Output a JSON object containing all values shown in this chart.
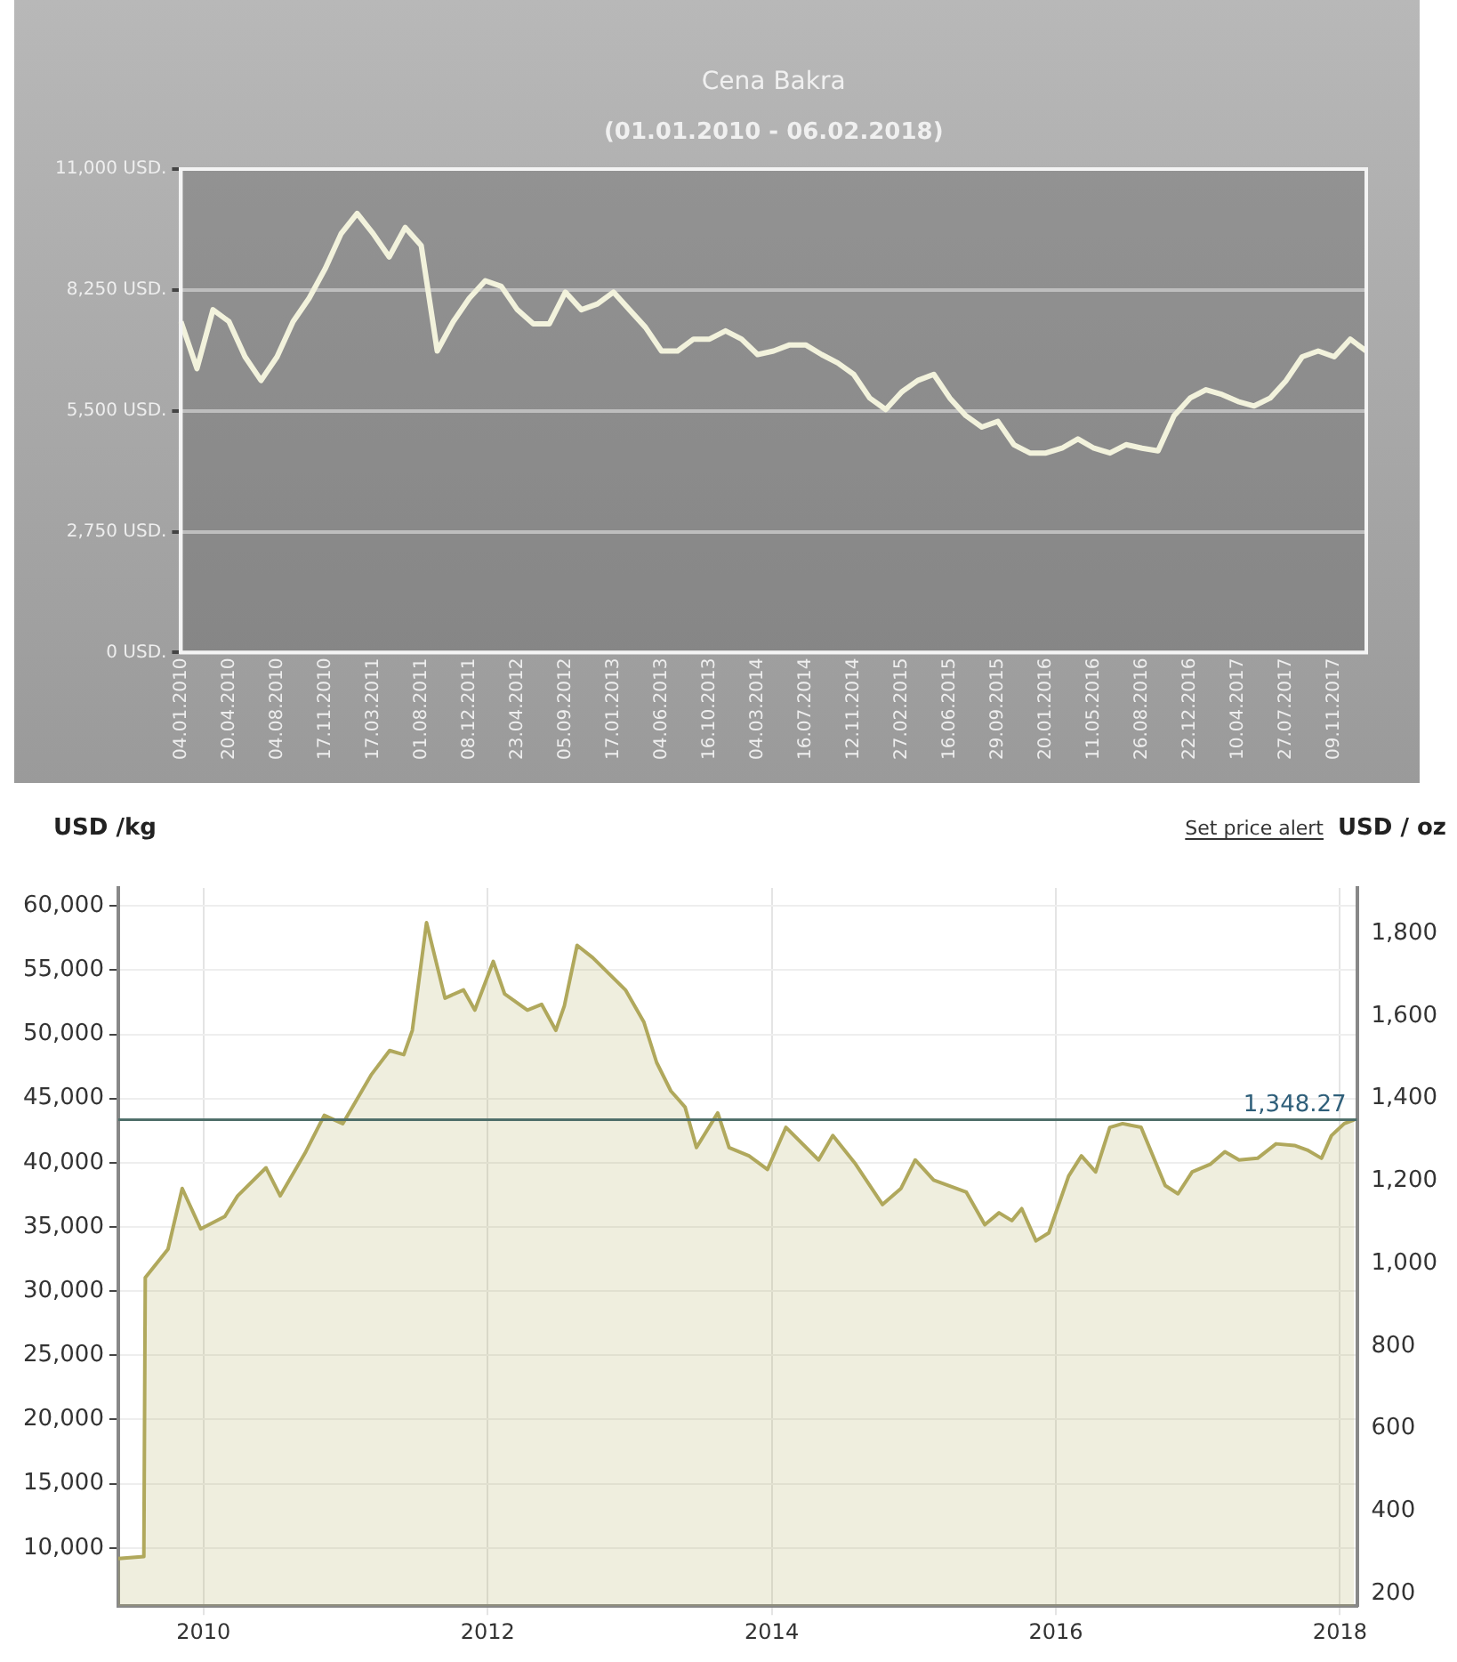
{
  "chart_data": [
    {
      "type": "line",
      "title": "Cena Bakra",
      "subtitle": "(01.01.2010 - 06.02.2018)",
      "categories": [
        "04.01.2010",
        null,
        null,
        "20.04.2010",
        null,
        null,
        "04.08.2010",
        null,
        null,
        "17.11.2010",
        null,
        null,
        "17.03.2011",
        null,
        null,
        "01.08.2011",
        null,
        null,
        "08.12.2011",
        null,
        null,
        "23.04.2012",
        null,
        null,
        "05.09.2012",
        null,
        null,
        "17.01.2013",
        null,
        null,
        "04.06.2013",
        null,
        null,
        "16.10.2013",
        null,
        null,
        "04.03.2014",
        null,
        null,
        "16.07.2014",
        null,
        null,
        "12.11.2014",
        null,
        null,
        "27.02.2015",
        null,
        null,
        "16.06.2015",
        null,
        null,
        "29.09.2015",
        null,
        null,
        "20.01.2016",
        null,
        null,
        "11.05.2016",
        null,
        null,
        "26.08.2016",
        null,
        null,
        "22.12.2016",
        null,
        null,
        "10.04.2017",
        null,
        null,
        "27.07.2017",
        null,
        null,
        "09.11.2017",
        null,
        null
      ],
      "series": [
        {
          "color": "#f2f2dc",
          "values": [
            7530,
            6460,
            7800,
            7530,
            6730,
            6190,
            6730,
            7530,
            8060,
            8730,
            9530,
            9990,
            9530,
            9000,
            9670,
            9260,
            6860,
            7530,
            8060,
            8460,
            8330,
            7800,
            7480,
            7480,
            8200,
            7800,
            7930,
            8200,
            7800,
            7400,
            6860,
            6860,
            7130,
            7130,
            7320,
            7130,
            6780,
            6860,
            7000,
            7000,
            6780,
            6590,
            6330,
            5790,
            5530,
            5930,
            6190,
            6330,
            5790,
            5390,
            5130,
            5260,
            4730,
            4540,
            4540,
            4650,
            4860,
            4650,
            4540,
            4730,
            4650,
            4590,
            5390,
            5790,
            5980,
            5870,
            5710,
            5610,
            5790,
            6190,
            6730,
            6860,
            6730,
            7130,
            6860
          ]
        }
      ],
      "ylim": [
        0,
        11000
      ],
      "yticks": [
        {
          "value": 0,
          "label": "0 USD."
        },
        {
          "value": 2750,
          "label": "2,750 USD."
        },
        {
          "value": 5500,
          "label": "5,500 USD."
        },
        {
          "value": 8250,
          "label": "8,250 USD."
        },
        {
          "value": 11000,
          "label": "11,000 USD."
        }
      ],
      "grid": "y",
      "legend": false
    },
    {
      "type": "area",
      "ylabel": "USD /kg",
      "y2label": "USD / oz",
      "annotations": [
        "Set price alert"
      ],
      "series": [
        {
          "color": "#b0a85c",
          "axis": "y2",
          "x": [
            2009.4,
            2009.58,
            2009.59,
            2009.75,
            2009.85,
            2009.98,
            2010.15,
            2010.24,
            2010.44,
            2010.54,
            2010.72,
            2010.85,
            2010.98,
            2011.18,
            2011.31,
            2011.41,
            2011.47,
            2011.57,
            2011.7,
            2011.83,
            2011.91,
            2012.04,
            2012.12,
            2012.28,
            2012.38,
            2012.48,
            2012.54,
            2012.63,
            2012.74,
            2012.97,
            2013.1,
            2013.19,
            2013.29,
            2013.39,
            2013.47,
            2013.62,
            2013.7,
            2013.84,
            2013.97,
            2014.1,
            2014.33,
            2014.43,
            2014.59,
            2014.78,
            2014.91,
            2015.01,
            2015.14,
            2015.37,
            2015.5,
            2015.6,
            2015.69,
            2015.76,
            2015.86,
            2015.95,
            2016.09,
            2016.18,
            2016.28,
            2016.38,
            2016.47,
            2016.6,
            2016.77,
            2016.86,
            2016.96,
            2017.09,
            2017.19,
            2017.29,
            2017.42,
            2017.55,
            2017.68,
            2017.77,
            2017.87,
            2017.94,
            2018.03,
            2018.1
          ],
          "values": [
            285,
            290,
            966,
            1035,
            1182,
            1084,
            1114,
            1164,
            1232,
            1164,
            1271,
            1359,
            1339,
            1457,
            1516,
            1506,
            1565,
            1826,
            1643,
            1663,
            1614,
            1732,
            1653,
            1614,
            1628,
            1565,
            1624,
            1771,
            1741,
            1663,
            1585,
            1487,
            1418,
            1379,
            1281,
            1365,
            1281,
            1261,
            1228,
            1330,
            1251,
            1310,
            1241,
            1143,
            1182,
            1251,
            1202,
            1173,
            1094,
            1123,
            1104,
            1133,
            1055,
            1074,
            1212,
            1261,
            1222,
            1330,
            1339,
            1330,
            1189,
            1169,
            1222,
            1241,
            1271,
            1251,
            1255,
            1290,
            1286,
            1275,
            1255,
            1310,
            1339,
            1348
          ]
        }
      ],
      "xlim": [
        2009.4,
        2018.12
      ],
      "xticks": [
        2010,
        2012,
        2014,
        2016,
        2018
      ],
      "ylim": [
        5470,
        61400
      ],
      "yticks": [
        {
          "value": 10000,
          "label": "10,000"
        },
        {
          "value": 15000,
          "label": "15,000"
        },
        {
          "value": 20000,
          "label": "20,000"
        },
        {
          "value": 25000,
          "label": "25,000"
        },
        {
          "value": 30000,
          "label": "30,000"
        },
        {
          "value": 35000,
          "label": "35,000"
        },
        {
          "value": 40000,
          "label": "40,000"
        },
        {
          "value": 45000,
          "label": "45,000"
        },
        {
          "value": 50000,
          "label": "50,000"
        },
        {
          "value": 55000,
          "label": "55,000"
        },
        {
          "value": 60000,
          "label": "60,000"
        }
      ],
      "y2lim": [
        170,
        1910
      ],
      "y2ticks": [
        200,
        400,
        600,
        800,
        {
          "value": 1000,
          "label": "1,000"
        },
        {
          "value": 1200,
          "label": "1,200"
        },
        {
          "value": 1400,
          "label": "1,400"
        },
        {
          "value": 1600,
          "label": "1,600"
        },
        {
          "value": 1800,
          "label": "1,800"
        }
      ],
      "ref_lines": [
        {
          "axis": "y2",
          "value": 1348.27,
          "label": "1,348.27",
          "color": "#4f6f6a"
        }
      ],
      "grid": true,
      "legend": false
    }
  ]
}
